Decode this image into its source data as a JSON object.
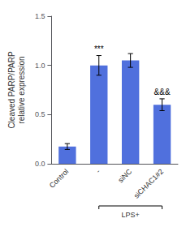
{
  "chart_data": {
    "type": "bar",
    "categories": [
      "Control",
      "-",
      "siNC",
      "siCHAC1#2"
    ],
    "values": [
      0.175,
      1.0,
      1.05,
      0.6
    ],
    "errors": [
      0.03,
      0.1,
      0.07,
      0.06
    ],
    "ylabel": "Cleaved PARP/PARP\nrelative expression",
    "ylim": [
      0,
      1.5
    ],
    "yticks": [
      {
        "value": 0.0,
        "label": "0.0"
      },
      {
        "value": 0.5,
        "label": "0.5"
      },
      {
        "value": 1.0,
        "label": "1.0"
      },
      {
        "value": 1.5,
        "label": "1.5"
      }
    ],
    "annotations": [
      {
        "category": "-",
        "text": "***"
      },
      {
        "category": "siCHAC1#2",
        "text": "&&&"
      }
    ],
    "group": {
      "label": "LPS+",
      "categories": [
        "-",
        "siNC",
        "siCHAC1#2"
      ]
    },
    "grid": false
  }
}
